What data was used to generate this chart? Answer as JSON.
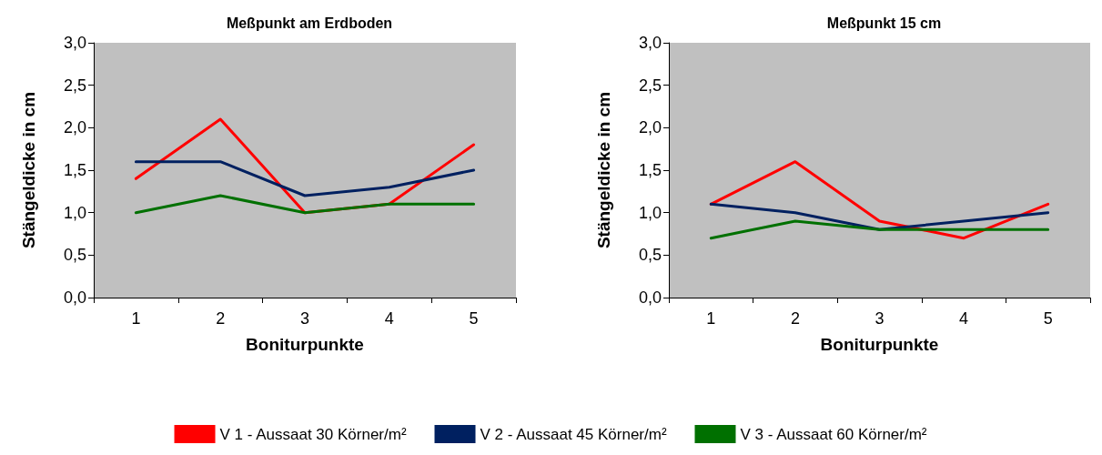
{
  "chart_data": [
    {
      "type": "line",
      "title": "Meßpunkt am Erdboden",
      "xlabel": "Boniturpunkte",
      "ylabel": "Stängeldicke in cm",
      "categories": [
        "1",
        "2",
        "3",
        "4",
        "5"
      ],
      "series": [
        {
          "name": "V 1 - Aussaat 30 Körner/m²",
          "color": "#ff0000",
          "values": [
            1.4,
            2.1,
            1.0,
            1.1,
            1.8
          ]
        },
        {
          "name": "V 2 - Aussaat 45 Körner/m²",
          "color": "#002060",
          "values": [
            1.6,
            1.6,
            1.2,
            1.3,
            1.5
          ]
        },
        {
          "name": "V 3 - Aussaat 60 Körner/m²",
          "color": "#007000",
          "values": [
            1.0,
            1.2,
            1.0,
            1.1,
            1.1
          ]
        }
      ],
      "ylim": [
        0,
        3
      ],
      "yticks": [
        {
          "value": 0,
          "label": "0,0"
        },
        {
          "value": 0.5,
          "label": "0,5"
        },
        {
          "value": 1,
          "label": "1,0"
        },
        {
          "value": 1.5,
          "label": "1,5"
        },
        {
          "value": 2,
          "label": "2,0"
        },
        {
          "value": 2.5,
          "label": "2,5"
        },
        {
          "value": 3,
          "label": "3,0"
        }
      ],
      "grid": false,
      "legend": "bottom",
      "marker": "none",
      "line_style": "solid"
    },
    {
      "type": "line",
      "title": "Meßpunkt 15 cm",
      "xlabel": "Boniturpunkte",
      "ylabel": "Stängeldicke in cm",
      "categories": [
        "1",
        "2",
        "3",
        "4",
        "5"
      ],
      "series": [
        {
          "color": "#ff0000",
          "values": [
            1.1,
            1.6,
            0.9,
            0.7,
            1.1
          ]
        },
        {
          "color": "#002060",
          "values": [
            1.1,
            1.0,
            0.8,
            0.9,
            1.0
          ]
        },
        {
          "color": "#007000",
          "values": [
            0.7,
            0.9,
            0.8,
            0.8,
            0.8
          ]
        }
      ],
      "ylim": [
        0,
        3
      ],
      "yticks": [
        {
          "value": 0,
          "label": "0,0"
        },
        {
          "value": 0.5,
          "label": "0,5"
        },
        {
          "value": 1,
          "label": "1,0"
        },
        {
          "value": 1.5,
          "label": "1,5"
        },
        {
          "value": 2,
          "label": "2,0"
        },
        {
          "value": 2.5,
          "label": "2,5"
        },
        {
          "value": 3,
          "label": "3,0"
        }
      ],
      "grid": false,
      "legend": false,
      "marker": "none",
      "line_style": "solid"
    }
  ]
}
